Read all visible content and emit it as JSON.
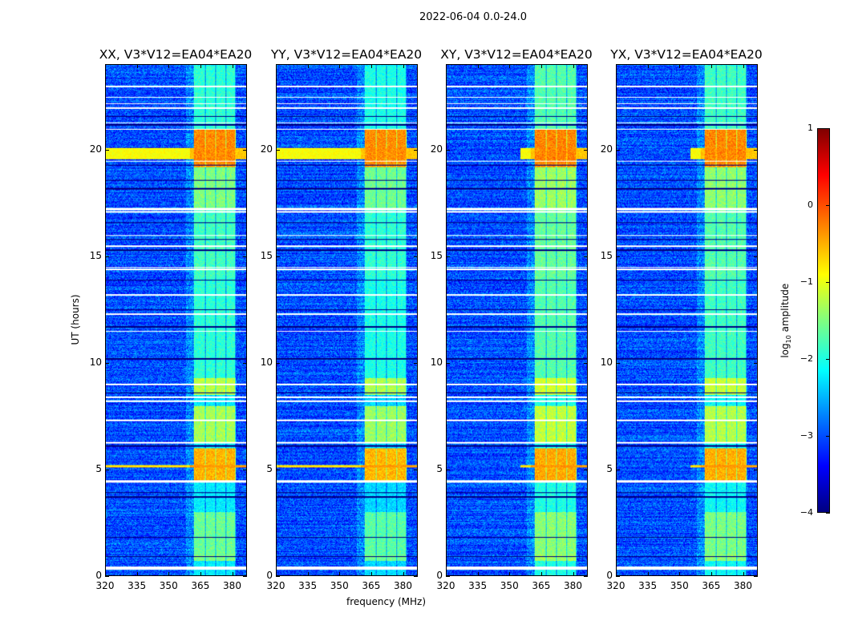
{
  "chart_data": {
    "type": "heatmap",
    "title": "2022-06-04 0.0-24.0",
    "xlabel": "frequency (MHz)",
    "ylabel": "UT (hours)",
    "xlim": [
      320,
      387
    ],
    "ylim": [
      0,
      24
    ],
    "xticks": [
      "320",
      "335",
      "350",
      "365",
      "380"
    ],
    "xtick_values": [
      320,
      335,
      350,
      365,
      380
    ],
    "yticks": [
      "0",
      "5",
      "10",
      "15",
      "20"
    ],
    "ytick_values": [
      0,
      5,
      10,
      15,
      20
    ],
    "colormap": "jet",
    "colorbar": {
      "label_prefix": "log",
      "label_sub": "10",
      "label_suffix": " amplitude",
      "range": [
        -4,
        1
      ],
      "ticks": [
        "1",
        "0",
        "−1",
        "−2",
        "−3",
        "−4"
      ],
      "tick_values": [
        1,
        0,
        -1,
        -2,
        -3,
        -4
      ]
    },
    "panels": [
      {
        "title": "XX, V3*V12=EA04*EA20",
        "rfi_scale": 1.0
      },
      {
        "title": "YY, V3*V12=EA04*EA20",
        "rfi_scale": 1.05
      },
      {
        "title": "XY, V3*V12=EA04*EA20",
        "rfi_scale": 0.9
      },
      {
        "title": "YX, V3*V12=EA04*EA20",
        "rfi_scale": 0.95
      }
    ],
    "background_log_amp": -3.0,
    "rfi_channels_mhz": [
      [
        362,
        367
      ],
      [
        367.5,
        372
      ],
      [
        372.5,
        377
      ],
      [
        377.5,
        381.5
      ]
    ],
    "rfi_intervals_hours": [
      {
        "t": [
          0.7,
          1.0
        ],
        "amp": -1.5
      },
      {
        "t": [
          1.0,
          3.0
        ],
        "amp": -1.6
      },
      {
        "t": [
          4.5,
          6.0
        ],
        "amp": -0.5
      },
      {
        "t": [
          6.2,
          8.0
        ],
        "amp": -1.3
      },
      {
        "t": [
          8.5,
          9.3
        ],
        "amp": -1.2
      },
      {
        "t": [
          9.3,
          14.0
        ],
        "amp": -1.9
      },
      {
        "t": [
          14.0,
          17.2
        ],
        "amp": -1.8
      },
      {
        "t": [
          17.2,
          19.2
        ],
        "amp": -1.5
      },
      {
        "t": [
          19.2,
          21.0
        ],
        "amp": -0.3
      },
      {
        "t": [
          21.0,
          24.0
        ],
        "amp": -1.9
      }
    ],
    "broadband_events_hours": [
      {
        "t": [
          19.6,
          20.1
        ],
        "amp": -0.6
      },
      {
        "t": [
          5.1,
          5.2
        ],
        "amp": -0.4
      }
    ],
    "flagged_hours": [
      0.3,
      0.35,
      0.4,
      4.4,
      4.45,
      6.25,
      7.3,
      8.2,
      8.4,
      9.0,
      11.5,
      12.3,
      13.2,
      14.4,
      14.5,
      15.5,
      16.0,
      17.1,
      17.2,
      17.25,
      19.5,
      21.0,
      21.3,
      22.0,
      22.2,
      22.5,
      23.0
    ],
    "dark_gap_hours": [
      0.9,
      1.8,
      3.7,
      3.9,
      6.1,
      8.6,
      10.2,
      11.7,
      12.5,
      13.9,
      15.3,
      15.8,
      16.6,
      18.2,
      18.6,
      19.3,
      21.2,
      21.6
    ]
  }
}
